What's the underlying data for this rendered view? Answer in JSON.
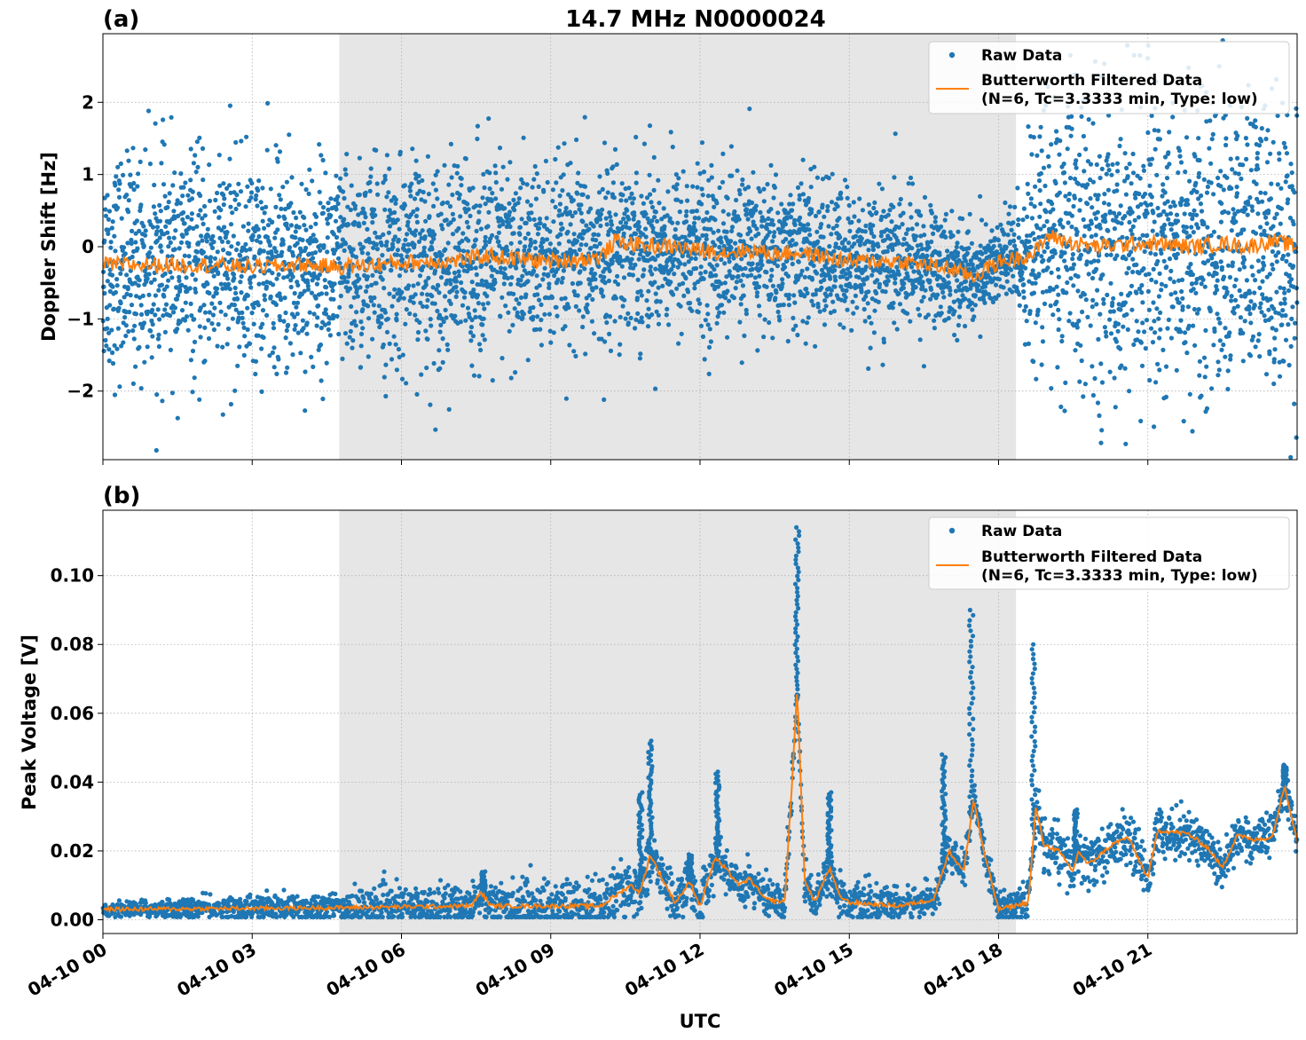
{
  "figure": {
    "title": "14.7 MHz N0000024",
    "xlabel": "UTC"
  },
  "colors": {
    "raw": "#1f77b4",
    "filtered": "#ff7f0e",
    "night_shade": "#e6e6e6",
    "grid": "#b0b0b0"
  },
  "x_axis": {
    "range_hours": [
      0,
      24
    ],
    "tick_hours": [
      0,
      3,
      6,
      9,
      12,
      15,
      18,
      21
    ],
    "tick_labels": [
      "04-10 00",
      "04-10 03",
      "04-10 06",
      "04-10 09",
      "04-10 12",
      "04-10 15",
      "04-10 18",
      "04-10 21"
    ]
  },
  "shaded_interval_hours": [
    4.75,
    18.35
  ],
  "chart_data": [
    {
      "type": "scatter",
      "panel_label": "(a)",
      "title": "14.7 MHz N0000024",
      "xlabel": "",
      "ylabel": "Doppler Shift [Hz]",
      "ylim": [
        -2.95,
        2.95
      ],
      "yticks": [
        -2,
        -1,
        0,
        1,
        2
      ],
      "ytick_labels": [
        "−2",
        "−1",
        "0",
        "1",
        "2"
      ],
      "grid": true,
      "legend_position": "top-right",
      "legend": {
        "raw": "Raw Data",
        "filtered_line1": "Butterworth Filtered Data",
        "filtered_line2": "(N=6, Tc=3.3333 min, Type: low)"
      },
      "filtered_trend": {
        "x": [
          0,
          1,
          2,
          3,
          4,
          4.75,
          5.5,
          6,
          7,
          7.8,
          8,
          9,
          10,
          10.3,
          10.8,
          11.5,
          12,
          12.5,
          13,
          13.5,
          14,
          15,
          16,
          16.5,
          17,
          17.5,
          17.8,
          18,
          18.4,
          18.7,
          19,
          19.5,
          20,
          21,
          21.5,
          22,
          22.5,
          23,
          23.5,
          24
        ],
        "y": [
          -0.25,
          -0.25,
          -0.25,
          -0.28,
          -0.25,
          -0.28,
          -0.25,
          -0.22,
          -0.2,
          -0.12,
          -0.15,
          -0.2,
          -0.15,
          0.08,
          0.02,
          0.0,
          -0.05,
          -0.08,
          -0.05,
          -0.1,
          -0.08,
          -0.2,
          -0.2,
          -0.25,
          -0.3,
          -0.42,
          -0.28,
          -0.22,
          -0.15,
          -0.1,
          0.15,
          0.05,
          0.0,
          0.05,
          0.02,
          0.0,
          0.05,
          0.0,
          0.08,
          0.0
        ]
      },
      "scatter_envelope": {
        "x": [
          0,
          4.75,
          7.8,
          10.3,
          13,
          16.5,
          17.8,
          18.4,
          19,
          24
        ],
        "spread_hz": [
          0.75,
          0.7,
          0.7,
          0.6,
          0.55,
          0.45,
          0.3,
          0.4,
          1.0,
          1.0
        ]
      }
    },
    {
      "type": "scatter",
      "panel_label": "(b)",
      "title": "",
      "xlabel": "UTC",
      "ylabel": "Peak Voltage [V]",
      "ylim": [
        -0.004,
        0.119
      ],
      "yticks": [
        0.0,
        0.02,
        0.04,
        0.06,
        0.08,
        0.1
      ],
      "ytick_labels": [
        "0.00",
        "0.02",
        "0.04",
        "0.06",
        "0.08",
        "0.10"
      ],
      "grid": true,
      "legend_position": "top-right",
      "legend": {
        "raw": "Raw Data",
        "filtered_line1": "Butterworth Filtered Data",
        "filtered_line2": "(N=6, Tc=3.3333 min, Type: low)"
      },
      "filtered_trend": {
        "x": [
          0,
          4.75,
          7.4,
          7.6,
          7.8,
          10,
          10.4,
          10.6,
          10.8,
          11,
          11.2,
          11.5,
          11.8,
          12.0,
          12.3,
          12.5,
          12.8,
          13.0,
          13.3,
          13.7,
          13.85,
          13.95,
          14.1,
          14.3,
          14.6,
          14.8,
          15.0,
          16.0,
          16.7,
          17.0,
          17.3,
          17.5,
          17.7,
          18.0,
          18.6,
          18.75,
          18.9,
          19.2,
          19.5,
          19.6,
          19.8,
          20.3,
          20.6,
          21.0,
          21.2,
          21.8,
          22.2,
          22.5,
          22.8,
          23.1,
          23.5,
          23.75,
          24
        ],
        "y": [
          0.003,
          0.0035,
          0.004,
          0.008,
          0.004,
          0.004,
          0.008,
          0.01,
          0.008,
          0.019,
          0.013,
          0.005,
          0.011,
          0.004,
          0.018,
          0.015,
          0.01,
          0.012,
          0.006,
          0.005,
          0.04,
          0.067,
          0.012,
          0.005,
          0.015,
          0.007,
          0.005,
          0.004,
          0.006,
          0.02,
          0.014,
          0.035,
          0.02,
          0.003,
          0.005,
          0.033,
          0.022,
          0.02,
          0.014,
          0.02,
          0.016,
          0.022,
          0.024,
          0.012,
          0.026,
          0.025,
          0.021,
          0.015,
          0.025,
          0.023,
          0.024,
          0.039,
          0.023
        ]
      },
      "scatter_envelope": {
        "x": [
          0,
          10,
          18.0,
          18.6,
          24
        ],
        "spread_v": [
          0.001,
          0.004,
          0.002,
          0.004,
          0.003
        ]
      },
      "raw_peaks": [
        {
          "x": 7.65,
          "y": 0.014
        },
        {
          "x": 10.8,
          "y": 0.037
        },
        {
          "x": 11.0,
          "y": 0.052
        },
        {
          "x": 11.8,
          "y": 0.019
        },
        {
          "x": 12.35,
          "y": 0.043
        },
        {
          "x": 13.95,
          "y": 0.114
        },
        {
          "x": 14.6,
          "y": 0.037
        },
        {
          "x": 16.9,
          "y": 0.048
        },
        {
          "x": 17.45,
          "y": 0.09
        },
        {
          "x": 18.7,
          "y": 0.08
        },
        {
          "x": 19.55,
          "y": 0.032
        },
        {
          "x": 23.75,
          "y": 0.045
        }
      ]
    }
  ]
}
